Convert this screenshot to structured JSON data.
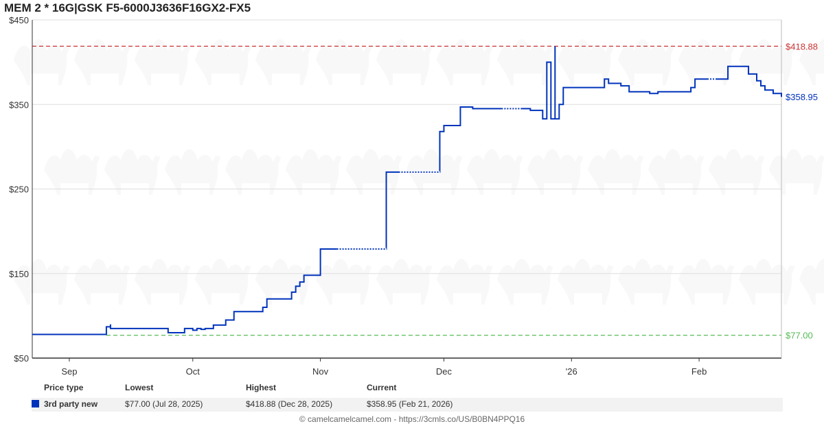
{
  "page": {
    "title": "MEM 2 * 16G|GSK F5-6000J3636F16GX2-FX5",
    "footer": "© camelcamelcamel.com - https://3cmls.co/US/B0BN4PPQ16"
  },
  "table": {
    "headers": {
      "type": "Price type",
      "lowest": "Lowest",
      "highest": "Highest",
      "current": "Current"
    },
    "row": {
      "type": "3rd party new",
      "lowest": "$77.00 (Jul 28, 2025)",
      "highest": "$418.88 (Dec 28, 2025)",
      "current": "$358.95 (Feb 21, 2026)"
    }
  },
  "colors": {
    "series": "#0033bb",
    "highest_line": "#cc3333",
    "lowest_line": "#55bb55",
    "grid": "#dddddd",
    "axis": "#333333"
  },
  "chart_data": {
    "type": "line",
    "title": "MEM 2 * 16G|GSK F5-6000J3636F16GX2-FX5",
    "xlabel": "",
    "ylabel": "",
    "x_range": [
      "2025-08-23",
      "2026-02-21"
    ],
    "ylim": [
      50,
      450
    ],
    "y_ticks": [
      50,
      150,
      250,
      350,
      450
    ],
    "y_tick_labels": [
      "$50",
      "$150",
      "$250",
      "$350",
      "$450"
    ],
    "x_ticks": [
      {
        "date": "2025-09-01",
        "label": "Sep"
      },
      {
        "date": "2025-10-01",
        "label": "Oct"
      },
      {
        "date": "2025-11-01",
        "label": "Nov"
      },
      {
        "date": "2025-12-01",
        "label": "Dec"
      },
      {
        "date": "2026-01-01",
        "label": "'26"
      },
      {
        "date": "2026-02-01",
        "label": "Feb"
      }
    ],
    "grid": true,
    "reference_lines": [
      {
        "name": "highest",
        "value": 418.88,
        "label": "$418.88"
      },
      {
        "name": "lowest",
        "value": 77.0,
        "label": "$77.00"
      }
    ],
    "current_label": "$358.95",
    "series": [
      {
        "name": "3rd party new",
        "step": true,
        "points": [
          [
            "2025-08-23",
            78
          ],
          [
            "2025-09-10",
            78
          ],
          [
            "2025-09-10",
            87
          ],
          [
            "2025-09-11",
            87
          ],
          [
            "2025-09-11",
            90
          ],
          [
            "2025-09-11",
            85
          ],
          [
            "2025-09-25",
            85
          ],
          [
            "2025-09-25",
            80
          ],
          [
            "2025-09-29",
            80
          ],
          [
            "2025-09-29",
            85
          ],
          [
            "2025-10-01",
            85
          ],
          [
            "2025-10-01",
            83
          ],
          [
            "2025-10-02",
            83
          ],
          [
            "2025-10-02",
            85
          ],
          [
            "2025-10-03",
            85
          ],
          [
            "2025-10-03",
            84
          ],
          [
            "2025-10-04",
            84
          ],
          [
            "2025-10-04",
            85
          ],
          [
            "2025-10-06",
            85
          ],
          [
            "2025-10-06",
            89
          ],
          [
            "2025-10-09",
            89
          ],
          [
            "2025-10-09",
            95
          ],
          [
            "2025-10-11",
            95
          ],
          [
            "2025-10-11",
            105
          ],
          [
            "2025-10-18",
            105
          ],
          [
            "2025-10-18",
            110
          ],
          [
            "2025-10-19",
            110
          ],
          [
            "2025-10-19",
            120
          ],
          [
            "2025-10-25",
            120
          ],
          [
            "2025-10-25",
            128
          ],
          [
            "2025-10-26",
            128
          ],
          [
            "2025-10-26",
            135
          ],
          [
            "2025-10-27",
            135
          ],
          [
            "2025-10-27",
            140
          ],
          [
            "2025-10-28",
            140
          ],
          [
            "2025-10-28",
            148
          ],
          [
            "2025-11-01",
            148
          ],
          [
            "2025-11-01",
            179
          ],
          [
            "2025-11-17",
            179
          ],
          [
            "2025-11-17",
            270
          ],
          [
            "2025-11-30",
            270
          ],
          [
            "2025-11-30",
            318
          ],
          [
            "2025-12-01",
            318
          ],
          [
            "2025-12-01",
            325
          ],
          [
            "2025-12-05",
            325
          ],
          [
            "2025-12-05",
            347
          ],
          [
            "2025-12-08",
            347
          ],
          [
            "2025-12-08",
            345
          ],
          [
            "2025-12-22",
            345
          ],
          [
            "2025-12-22",
            343
          ],
          [
            "2025-12-25",
            343
          ],
          [
            "2025-12-25",
            333
          ],
          [
            "2025-12-26",
            333
          ],
          [
            "2025-12-26",
            400
          ],
          [
            "2025-12-27",
            400
          ],
          [
            "2025-12-27",
            333
          ],
          [
            "2025-12-28",
            333
          ],
          [
            "2025-12-28",
            418.88
          ],
          [
            "2025-12-28",
            333
          ],
          [
            "2025-12-29",
            333
          ],
          [
            "2025-12-29",
            350
          ],
          [
            "2025-12-30",
            350
          ],
          [
            "2025-12-30",
            370
          ],
          [
            "2026-01-09",
            370
          ],
          [
            "2026-01-09",
            380
          ],
          [
            "2026-01-10",
            380
          ],
          [
            "2026-01-10",
            375
          ],
          [
            "2026-01-13",
            375
          ],
          [
            "2026-01-13",
            372
          ],
          [
            "2026-01-15",
            372
          ],
          [
            "2026-01-15",
            365
          ],
          [
            "2026-01-20",
            365
          ],
          [
            "2026-01-20",
            363
          ],
          [
            "2026-01-22",
            363
          ],
          [
            "2026-01-22",
            365
          ],
          [
            "2026-01-30",
            365
          ],
          [
            "2026-01-30",
            370
          ],
          [
            "2026-01-31",
            370
          ],
          [
            "2026-01-31",
            380
          ],
          [
            "2026-02-08",
            380
          ],
          [
            "2026-02-08",
            395
          ],
          [
            "2026-02-13",
            395
          ],
          [
            "2026-02-13",
            386
          ],
          [
            "2026-02-15",
            386
          ],
          [
            "2026-02-15",
            378
          ],
          [
            "2026-02-16",
            378
          ],
          [
            "2026-02-16",
            372
          ],
          [
            "2026-02-17",
            372
          ],
          [
            "2026-02-17",
            367
          ],
          [
            "2026-02-19",
            367
          ],
          [
            "2026-02-19",
            363
          ],
          [
            "2026-02-21",
            363
          ],
          [
            "2026-02-21",
            358.95
          ]
        ],
        "dotted_segments": [
          [
            "2025-11-05",
            "2025-11-17"
          ],
          [
            "2025-11-20",
            "2025-11-30"
          ],
          [
            "2025-12-15",
            "2025-12-20"
          ],
          [
            "2026-02-03",
            "2026-02-05"
          ]
        ]
      }
    ]
  }
}
